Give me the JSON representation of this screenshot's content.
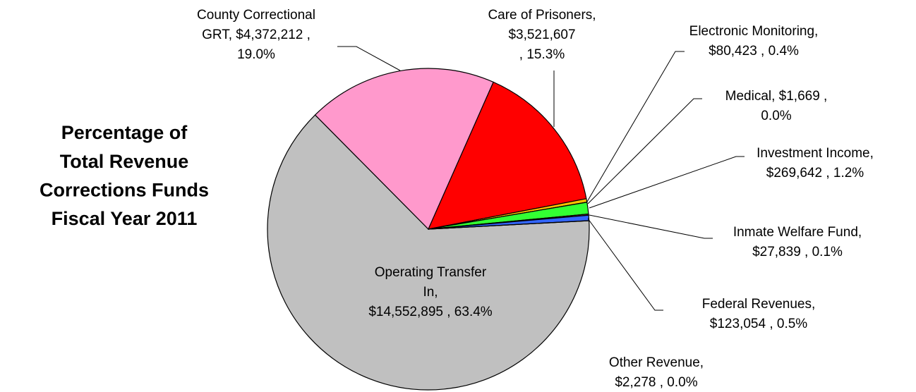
{
  "chart_data": {
    "type": "pie",
    "title": [
      "Percentage of",
      "Total Revenue",
      "Corrections Funds",
      "Fiscal Year 2011"
    ],
    "values": [
      14552895,
      4372212,
      3521607,
      80423,
      1669,
      269642,
      27839,
      123054,
      2278
    ],
    "value_labels": [
      [
        "Operating Transfer",
        "In,",
        "$14,552,895 , 63.4%"
      ],
      [
        "County Correctional",
        "GRT, $4,372,212 ,",
        "19.0%"
      ],
      [
        "Care of Prisoners,",
        "$3,521,607",
        ", 15.3%"
      ],
      [
        "Electronic Monitoring,",
        "$80,423 , 0.4%"
      ],
      [
        "Medical, $1,669 ,",
        "0.0%"
      ],
      [
        "Investment Income,",
        "$269,642 , 1.2%"
      ],
      [
        "Inmate Welfare Fund,",
        "$27,839 , 0.1%"
      ],
      [
        "Federal Revenues,",
        "$123,054 , 0.5%"
      ],
      [
        "Other Revenue,",
        "$2,278 , 0.0%"
      ]
    ],
    "colors": [
      "#c0c0c0",
      "#ff99cc",
      "#ff0000",
      "#ffc000",
      "#996633",
      "#33ff33",
      "#993366",
      "#3366ff",
      "#ccffcc"
    ]
  }
}
